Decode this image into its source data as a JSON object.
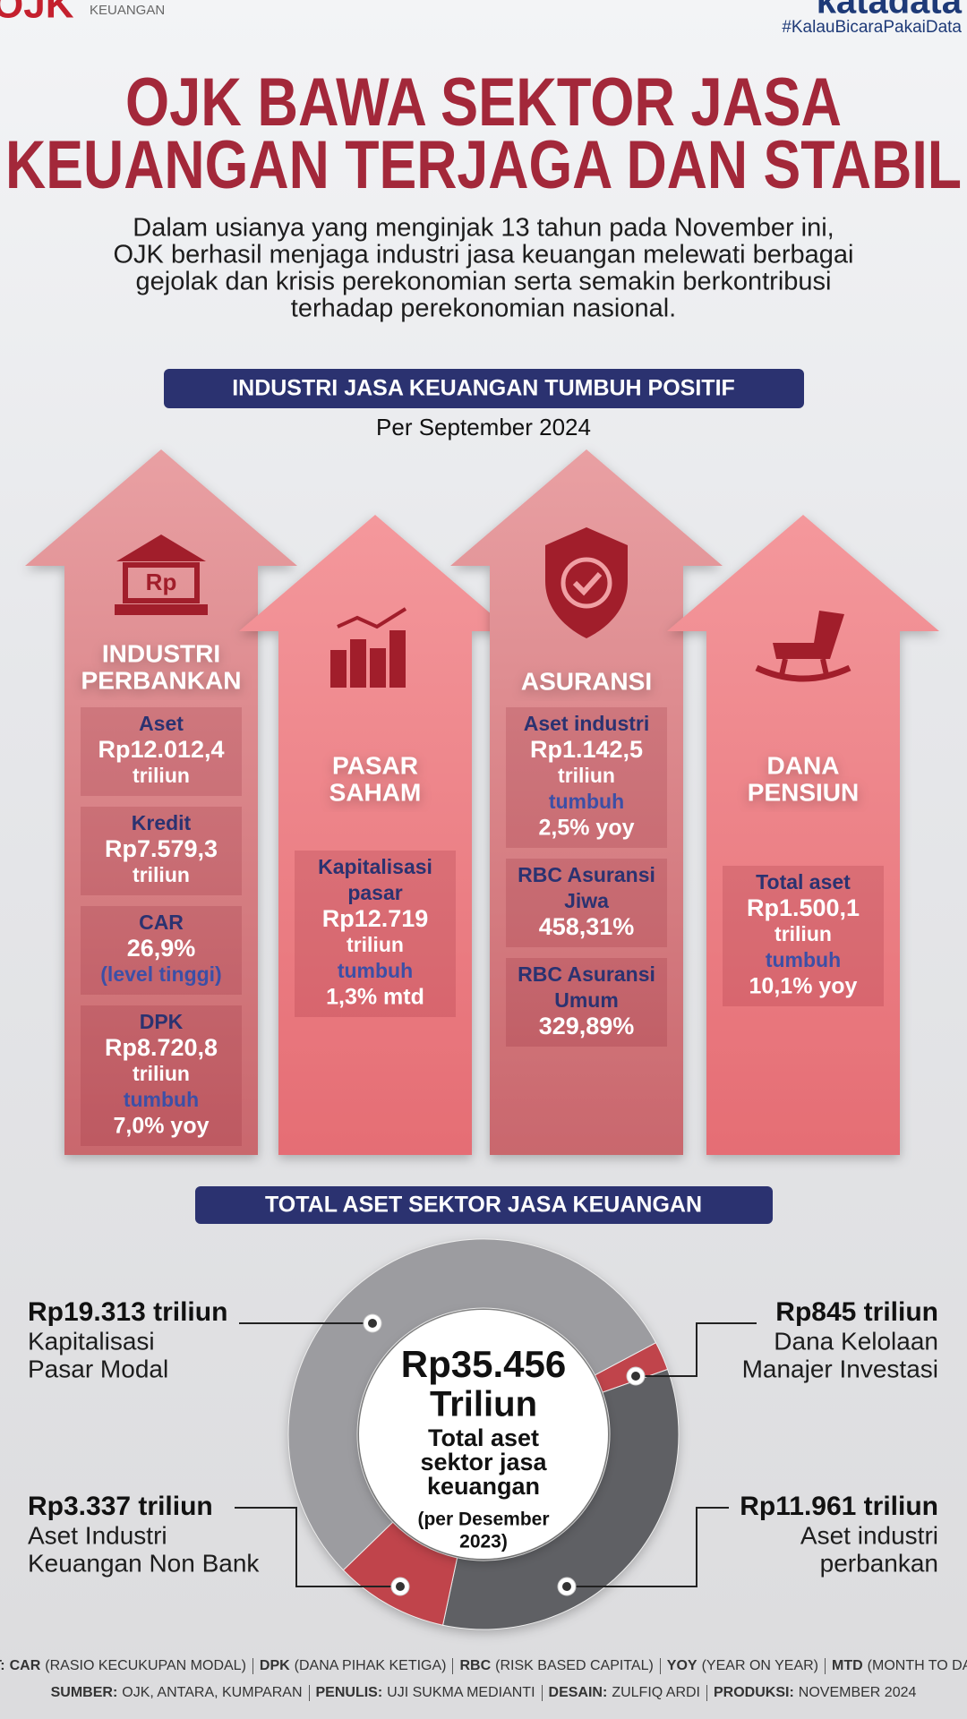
{
  "header": {
    "logo": "OJK",
    "logo_sub": "KEUANGAN",
    "brand": "katadata",
    "hashtag": "#KalauBicaraPakaiData"
  },
  "title": [
    "OJK BAWA SEKTOR JASA",
    "KEUANGAN TERJAGA DAN STABIL"
  ],
  "intro": [
    "Dalam usianya yang menginjak 13 tahun pada November ini,",
    "OJK berhasil menjaga industri jasa keuangan melewati berbagai",
    "gejolak dan krisis perekonomian serta semakin berkontribusi",
    "terhadap perekonomian nasional."
  ],
  "section": {
    "heading": "INDUSTRI JASA KEUANGAN TUMBUH POSITIF",
    "subheading": "Per September 2024",
    "columns": [
      {
        "name": [
          "INDUSTRI",
          "PERBANKAN"
        ],
        "icon_text": "Rp",
        "stats": [
          {
            "label": [
              "Aset"
            ],
            "value": "Rp12.012,4",
            "unit": "triliun"
          },
          {
            "label": [
              "Kredit"
            ],
            "value": "Rp7.579,3",
            "unit": "triliun"
          },
          {
            "label": [
              "CAR"
            ],
            "value": "26,9%",
            "note": "(level tinggi)"
          },
          {
            "label": [
              "DPK"
            ],
            "value": "Rp8.720,8",
            "unit": "triliun",
            "note": "tumbuh",
            "extra": "7,0% yoy"
          }
        ]
      },
      {
        "name": [
          "PASAR",
          "SAHAM"
        ],
        "stats": [
          {
            "label": [
              "Kapitalisasi",
              "pasar"
            ],
            "value": "Rp12.719",
            "unit": "triliun",
            "note": "tumbuh",
            "extra": "1,3% mtd"
          }
        ]
      },
      {
        "name": [
          "ASURANSI"
        ],
        "stats": [
          {
            "label": [
              "Aset industri"
            ],
            "value": "Rp1.142,5",
            "unit": "triliun",
            "note": "tumbuh",
            "extra": "2,5% yoy"
          },
          {
            "label": [
              "RBC Asuransi",
              "Jiwa"
            ],
            "value": "458,31%"
          },
          {
            "label": [
              "RBC Asuransi",
              "Umum"
            ],
            "value": "329,89%"
          }
        ]
      },
      {
        "name": [
          "DANA",
          "PENSIUN"
        ],
        "stats": [
          {
            "label": [
              "Total aset"
            ],
            "value": "Rp1.500,1",
            "unit": "triliun",
            "note": "tumbuh",
            "extra": "10,1% yoy"
          }
        ]
      }
    ]
  },
  "donut": {
    "heading": "TOTAL ASET SEKTOR JASA KEUANGAN",
    "total_label": "Rp35.456",
    "total_unit": "Triliun",
    "caption": [
      "Total aset",
      "sektor jasa",
      "keuangan"
    ],
    "note": [
      "(per Desember",
      "2023)"
    ],
    "values": [
      845,
      11961,
      3337,
      19313
    ],
    "value_labels": [
      "Rp845 triliun",
      "Rp11.961 triliun",
      "Rp3.337 triliun",
      "Rp19.313 triliun"
    ],
    "names": [
      [
        "Dana Kelolaan",
        "Manajer Investasi"
      ],
      [
        "Aset industri",
        "perbankan"
      ],
      [
        "Aset Industri",
        "Keuangan Non Bank"
      ],
      [
        "Kapitalisasi",
        "Pasar Modal"
      ]
    ],
    "colors": [
      "#c0444b",
      "#5f6064",
      "#c0444b",
      "#9c9ca0"
    ]
  },
  "footer": {
    "notes": {
      "label": "KET:",
      "items": [
        [
          "CAR",
          "(RASIO KECUKUPAN MODAL)"
        ],
        [
          "DPK",
          "(DANA PIHAK KETIGA)"
        ],
        [
          "RBC",
          "(RISK BASED CAPITAL)"
        ],
        [
          "YOY",
          "(YEAR ON YEAR)"
        ],
        [
          "MTD",
          "(MONTH TO DATE)"
        ]
      ]
    },
    "credits": [
      [
        "SUMBER:",
        "OJK, ANTARA, KUMPARAN"
      ],
      [
        "PENULIS:",
        "UJI SUKMA MEDIANTI"
      ],
      [
        "DESAIN:",
        "ZULFIQ ARDI"
      ],
      [
        "PRODUKSI:",
        "NOVEMBER 2024"
      ]
    ]
  }
}
